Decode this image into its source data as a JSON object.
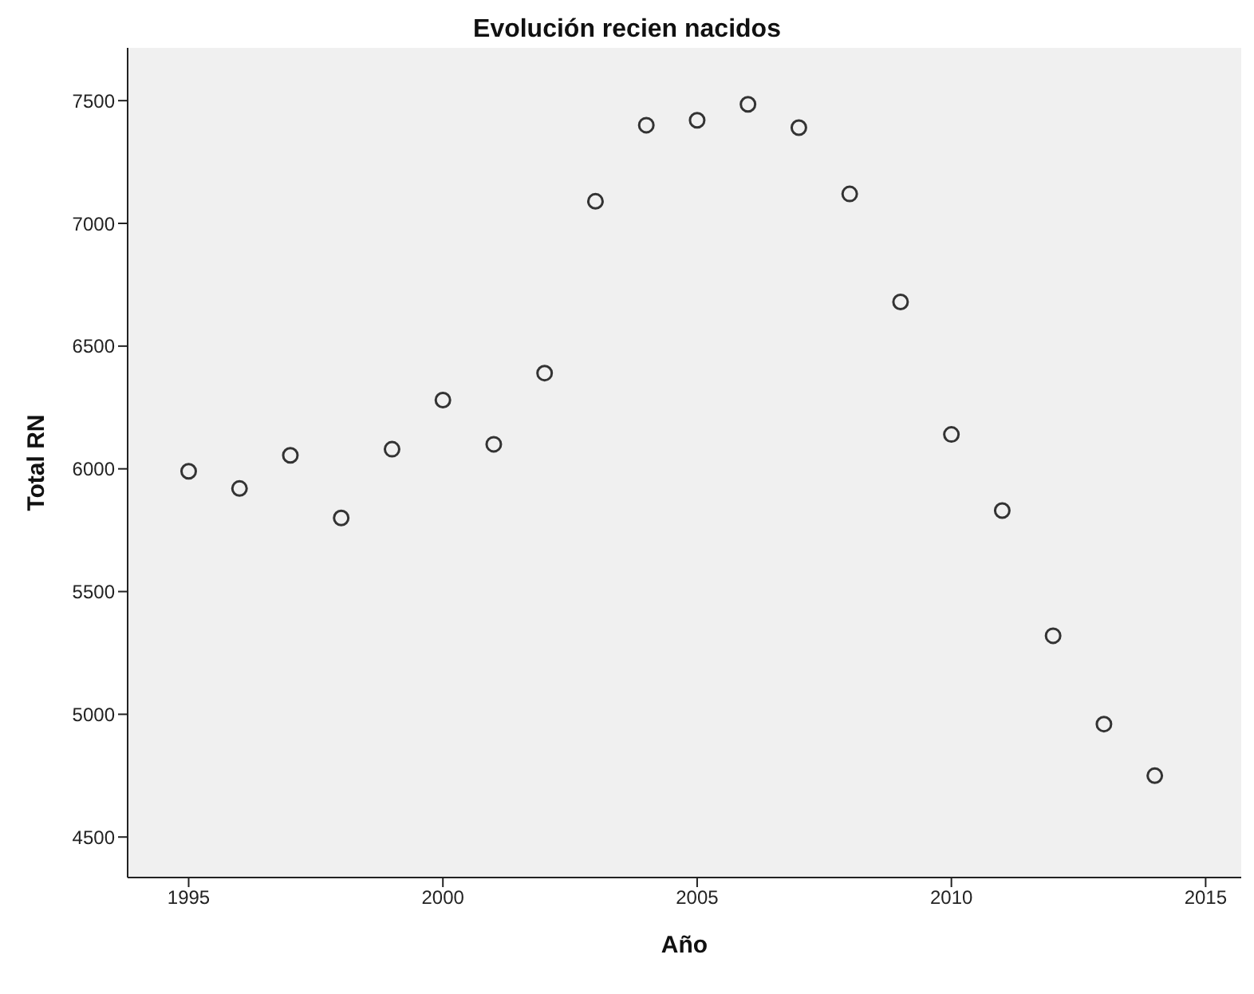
{
  "chart_data": {
    "type": "scatter",
    "title": "Evolución recien nacidos",
    "xlabel": "Año",
    "ylabel": "Total RN",
    "x": [
      1995,
      1996,
      1997,
      1998,
      1999,
      2000,
      2001,
      2002,
      2003,
      2004,
      2005,
      2006,
      2007,
      2008,
      2009,
      2010,
      2011,
      2012,
      2013,
      2014
    ],
    "values": [
      5990,
      5920,
      6055,
      5800,
      6080,
      6280,
      6100,
      6390,
      7090,
      7400,
      7420,
      7485,
      7390,
      7120,
      6680,
      6140,
      5830,
      5320,
      4960,
      4750
    ],
    "color": "#333333",
    "marker": "circle",
    "xlim": [
      1993.8,
      2015.7
    ],
    "xticks": [
      1995,
      2000,
      2005,
      2010,
      2015
    ],
    "ylim": [
      4335,
      7715
    ],
    "yticks": [
      4500,
      5000,
      5500,
      6000,
      6500,
      7000,
      7500
    ],
    "grid": false,
    "legend": false
  }
}
